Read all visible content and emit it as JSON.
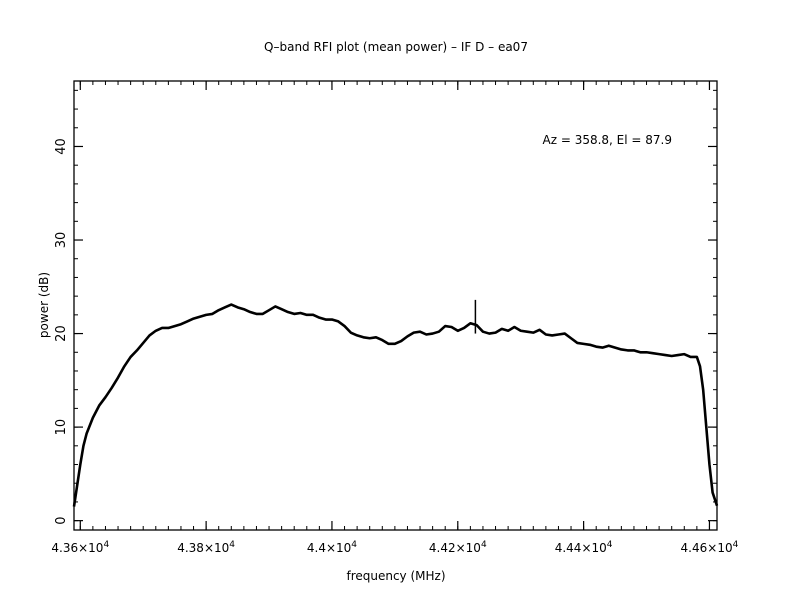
{
  "chart_data": {
    "type": "line",
    "title": "Q–band RFI plot (mean power) – IF D – ea07",
    "xlabel": "frequency (MHz)",
    "ylabel": "power (dB)",
    "annotation": "Az = 358.8, El = 87.9",
    "xlim": [
      43590,
      44612
    ],
    "ylim": [
      -1,
      47
    ],
    "x_ticks": [
      {
        "value": 43600,
        "label": "4.36×10",
        "exp": "4"
      },
      {
        "value": 43800,
        "label": "4.38×10",
        "exp": "4"
      },
      {
        "value": 44000,
        "label": "4.4×10",
        "exp": "4"
      },
      {
        "value": 44200,
        "label": "4.42×10",
        "exp": "4"
      },
      {
        "value": 44400,
        "label": "4.44×10",
        "exp": "4"
      },
      {
        "value": 44600,
        "label": "4.46×10",
        "exp": "4"
      }
    ],
    "y_ticks": [
      {
        "value": 0,
        "label": "0"
      },
      {
        "value": 10,
        "label": "10"
      },
      {
        "value": 20,
        "label": "20"
      },
      {
        "value": 30,
        "label": "30"
      },
      {
        "value": 40,
        "label": "40"
      }
    ],
    "x_minor_step": 20,
    "y_minor_step": 2,
    "grid": false,
    "line_color": "#000000",
    "series": [
      {
        "x": [
          43590,
          43600,
          43605,
          43610,
          43620,
          43630,
          43640,
          43650,
          43660,
          43670,
          43680,
          43690,
          43700,
          43710,
          43720,
          43730,
          43740,
          43750,
          43760,
          43770,
          43780,
          43790,
          43800,
          43810,
          43820,
          43830,
          43840,
          43850,
          43860,
          43870,
          43880,
          43890,
          43900,
          43910,
          43920,
          43930,
          43940,
          43950,
          43960,
          43970,
          43980,
          43990,
          44000,
          44010,
          44020,
          44030,
          44040,
          44050,
          44060,
          44070,
          44080,
          44090,
          44100,
          44110,
          44120,
          44130,
          44140,
          44150,
          44160,
          44170,
          44180,
          44190,
          44200,
          44210,
          44220,
          44230,
          44240,
          44250,
          44260,
          44270,
          44280,
          44290,
          44300,
          44310,
          44320,
          44330,
          44340,
          44350,
          44360,
          44370,
          44380,
          44390,
          44400,
          44410,
          44420,
          44430,
          44440,
          44450,
          44460,
          44470,
          44480,
          44490,
          44500,
          44510,
          44520,
          44530,
          44540,
          44550,
          44560,
          44570,
          44580,
          44585,
          44590,
          44595,
          44600,
          44605,
          44610,
          44612
        ],
        "y": [
          1.5,
          6.0,
          8.0,
          9.3,
          11.0,
          12.3,
          13.2,
          14.2,
          15.3,
          16.5,
          17.5,
          18.2,
          19.0,
          19.8,
          20.3,
          20.6,
          20.6,
          20.8,
          21.0,
          21.3,
          21.6,
          21.8,
          22.0,
          22.1,
          22.5,
          22.8,
          23.1,
          22.8,
          22.6,
          22.3,
          22.1,
          22.1,
          22.5,
          22.9,
          22.6,
          22.3,
          22.1,
          22.2,
          22.0,
          22.0,
          21.7,
          21.5,
          21.5,
          21.3,
          20.8,
          20.1,
          19.8,
          19.6,
          19.5,
          19.6,
          19.3,
          18.9,
          18.9,
          19.2,
          19.7,
          20.1,
          20.2,
          19.9,
          20.0,
          20.2,
          20.8,
          20.7,
          20.3,
          20.6,
          21.1,
          20.9,
          20.2,
          20.0,
          20.1,
          20.5,
          20.3,
          20.7,
          20.3,
          20.2,
          20.1,
          20.4,
          19.9,
          19.8,
          19.9,
          20.0,
          19.5,
          19.0,
          18.9,
          18.8,
          18.6,
          18.5,
          18.7,
          18.5,
          18.3,
          18.2,
          18.2,
          18.0,
          18.0,
          17.9,
          17.8,
          17.7,
          17.6,
          17.7,
          17.8,
          17.5,
          17.5,
          16.5,
          14.0,
          10.0,
          6.0,
          3.0,
          2.0,
          1.6
        ]
      }
    ],
    "spike": {
      "x": 44228,
      "y_top": 23.6,
      "y_base": 20.0
    }
  }
}
